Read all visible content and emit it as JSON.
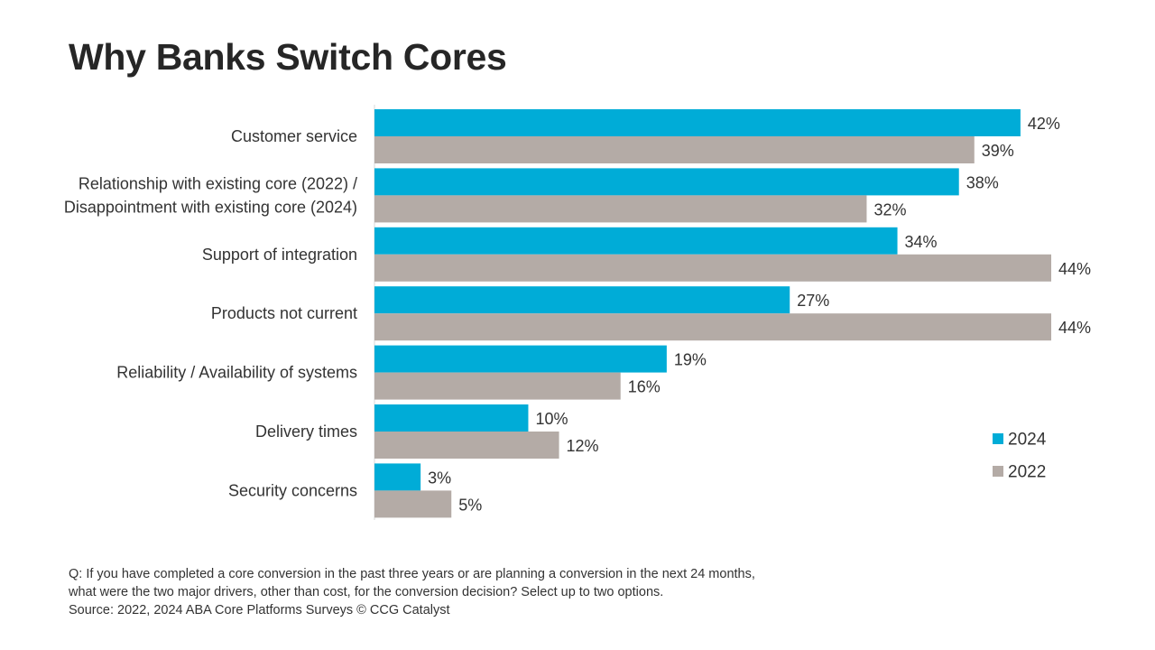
{
  "chart_data": {
    "type": "bar",
    "orientation": "horizontal",
    "title": "Why Banks Switch Cores",
    "categories": [
      [
        "Customer service"
      ],
      [
        "Relationship with existing core (2022) /",
        "Disappointment with existing core (2024)"
      ],
      [
        "Support of integration"
      ],
      [
        "Products not current"
      ],
      [
        "Reliability / Availability of systems"
      ],
      [
        "Delivery times"
      ],
      [
        "Security concerns"
      ]
    ],
    "series": [
      {
        "name": "2024",
        "color": "#00acd7",
        "values": [
          42,
          38,
          34,
          27,
          19,
          10,
          3
        ],
        "labels": [
          "42%",
          "38%",
          "34%",
          "27%",
          "19%",
          "10%",
          "3%"
        ]
      },
      {
        "name": "2022",
        "color": "#b4aba6",
        "values": [
          39,
          32,
          44,
          44,
          16,
          12,
          5
        ],
        "labels": [
          "39%",
          "32%",
          "44%",
          "44%",
          "16%",
          "12%",
          "5%"
        ]
      }
    ],
    "value_suffix": "%",
    "xlim": [
      0,
      44
    ],
    "grid": false,
    "legend": {
      "position": "bottom-right",
      "entries": [
        "2024",
        "2022"
      ]
    }
  },
  "footnote": {
    "line1": "Q: If you have completed a core conversion in the past three years or are planning a conversion in the next 24 months,",
    "line2": "what were the two major drivers, other than cost, for the conversion decision? Select up to two options.",
    "source": "Source: 2022, 2024 ABA Core Platforms Surveys © CCG Catalyst"
  }
}
